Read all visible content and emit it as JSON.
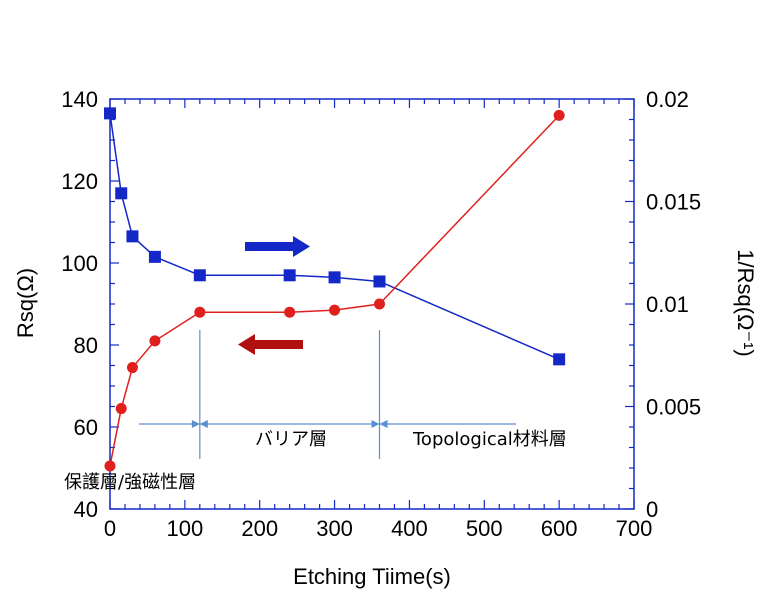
{
  "chart_data": {
    "type": "line",
    "xlabel": "Etching Tiime(s)",
    "ylabel": "Rsq(Ω)",
    "y2label": "1/Rsq(Ω⁻¹)",
    "xlim": [
      0,
      700
    ],
    "ylim": [
      40,
      140
    ],
    "y2lim": [
      0,
      0.02
    ],
    "xticks": [
      "0",
      "100",
      "200",
      "300",
      "400",
      "500",
      "600",
      "700"
    ],
    "yticks": [
      "40",
      "60",
      "80",
      "100",
      "120",
      "140"
    ],
    "y2ticks": [
      "0",
      "0.005",
      "0.01",
      "0.015",
      "0.02"
    ],
    "grid": false,
    "series": [
      {
        "axis": "right",
        "marker": "square",
        "color": "#1428c8",
        "x": [
          0,
          15,
          30,
          60,
          120,
          240,
          300,
          360,
          600
        ],
        "y": [
          0.0193,
          0.0154,
          0.0133,
          0.0123,
          0.0114,
          0.0114,
          0.0113,
          0.0111,
          0.0073
        ]
      },
      {
        "axis": "left",
        "marker": "circle",
        "color": "#e0201c",
        "x": [
          0,
          15,
          30,
          60,
          120,
          240,
          300,
          360,
          600
        ],
        "y": [
          50.5,
          64.5,
          74.5,
          81,
          88,
          88,
          88.5,
          90,
          136
        ]
      }
    ],
    "annotations": {
      "region1": "保護層/強磁性層",
      "region2": "バリア層",
      "region3": "Topological材料層"
    },
    "arrows": [
      {
        "direction": "right",
        "color": "#1428c8",
        "indicates": "right axis"
      },
      {
        "direction": "left",
        "color": "#b01010",
        "indicates": "left axis"
      }
    ]
  }
}
